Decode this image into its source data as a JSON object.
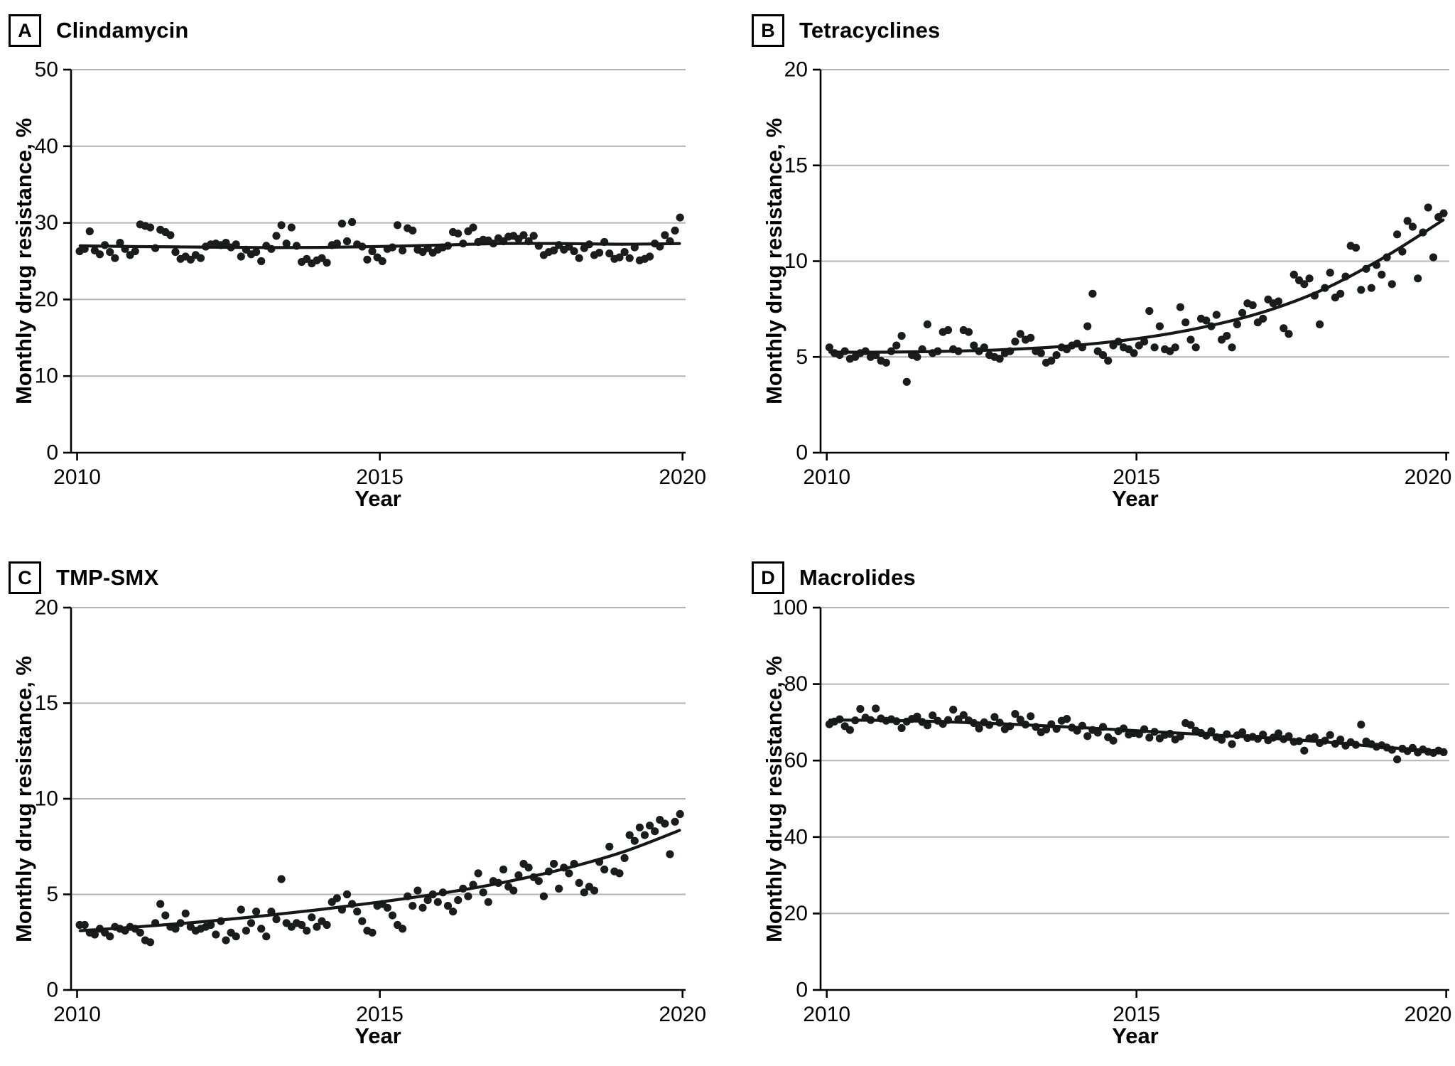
{
  "style": {
    "background": "#ffffff",
    "point_color": "#1a1d1c",
    "trend_color": "#14181a",
    "grid_color": "#b4b4b4",
    "axis_color": "#000000",
    "text_color": "#000000"
  },
  "chart_data": [
    {
      "panel": "A",
      "title": "Clindamycin",
      "type": "scatter",
      "xlabel": "Year",
      "ylabel": "Monthly drug resistance, %",
      "x_start_year": 2010,
      "x_interval": "monthly",
      "xlim": [
        2009.9,
        2020.05
      ],
      "ylim": [
        0,
        50
      ],
      "xticks": [
        2010,
        2015,
        2020
      ],
      "yticks": [
        0,
        10,
        20,
        30,
        40,
        50
      ],
      "grid": "horizontal",
      "legend": "none",
      "values": [
        26.3,
        26.6,
        28.9,
        26.4,
        25.9,
        27.1,
        26.2,
        25.4,
        27.4,
        26.6,
        25.8,
        26.3,
        29.8,
        29.6,
        29.4,
        26.7,
        29.1,
        28.8,
        28.4,
        26.2,
        25.3,
        25.6,
        25.2,
        25.8,
        25.4,
        26.9,
        27.2,
        27.3,
        27.1,
        27.4,
        26.8,
        27.2,
        25.6,
        26.5,
        25.9,
        26.2,
        25.0,
        27.0,
        26.6,
        28.3,
        29.7,
        27.3,
        29.4,
        27.0,
        24.9,
        25.3,
        24.7,
        25.1,
        25.4,
        24.8,
        27.1,
        27.3,
        29.9,
        27.6,
        30.1,
        27.2,
        26.9,
        25.2,
        26.3,
        25.5,
        25.0,
        26.6,
        26.8,
        29.7,
        26.4,
        29.3,
        29.0,
        26.5,
        26.2,
        26.7,
        26.1,
        26.5,
        26.8,
        27.0,
        28.8,
        28.6,
        27.3,
        28.9,
        29.4,
        27.5,
        27.8,
        27.7,
        27.3,
        28.0,
        27.6,
        28.2,
        28.3,
        27.9,
        28.4,
        27.6,
        28.3,
        27.0,
        25.8,
        26.2,
        26.4,
        27.1,
        26.5,
        26.9,
        26.3,
        25.4,
        26.7,
        27.2,
        25.8,
        26.1,
        27.5,
        26.0,
        25.3,
        25.5,
        26.2,
        25.4,
        26.8,
        25.1,
        25.3,
        25.6,
        27.3,
        26.9,
        28.4,
        27.6,
        29.0,
        30.7
      ],
      "trend": [
        [
          2010.05,
          27.0
        ],
        [
          2011,
          26.9
        ],
        [
          2012,
          26.85
        ],
        [
          2013,
          26.78
        ],
        [
          2014,
          26.8
        ],
        [
          2015,
          26.92
        ],
        [
          2016,
          27.1
        ],
        [
          2017,
          27.3
        ],
        [
          2018,
          27.3
        ],
        [
          2019,
          27.22
        ],
        [
          2019.95,
          27.3
        ]
      ]
    },
    {
      "panel": "B",
      "title": "Tetracyclines",
      "type": "scatter",
      "xlabel": "Year",
      "ylabel": "Monthly drug resistance, %",
      "x_start_year": 2010,
      "x_interval": "monthly",
      "xlim": [
        2009.9,
        2020.05
      ],
      "ylim": [
        0,
        20
      ],
      "xticks": [
        2010,
        2015,
        2020
      ],
      "yticks": [
        0,
        5,
        10,
        15,
        20
      ],
      "grid": "horizontal",
      "legend": "none",
      "values": [
        5.5,
        5.2,
        5.1,
        5.3,
        4.9,
        5.0,
        5.2,
        5.3,
        5.0,
        5.1,
        4.8,
        4.7,
        5.3,
        5.6,
        6.1,
        3.7,
        5.1,
        5.0,
        5.4,
        6.7,
        5.2,
        5.3,
        6.3,
        6.4,
        5.4,
        5.3,
        6.4,
        6.3,
        5.6,
        5.3,
        5.5,
        5.1,
        5.0,
        4.9,
        5.2,
        5.3,
        5.8,
        6.2,
        5.9,
        6.0,
        5.3,
        5.2,
        4.7,
        4.8,
        5.1,
        5.5,
        5.4,
        5.6,
        5.7,
        5.5,
        6.6,
        8.3,
        5.3,
        5.1,
        4.8,
        5.6,
        5.8,
        5.5,
        5.4,
        5.2,
        5.6,
        5.8,
        7.4,
        5.5,
        6.6,
        5.4,
        5.3,
        5.5,
        7.6,
        6.8,
        5.9,
        5.5,
        7.0,
        6.9,
        6.6,
        7.2,
        5.9,
        6.1,
        5.5,
        6.7,
        7.3,
        7.8,
        7.7,
        6.8,
        7.0,
        8.0,
        7.8,
        7.9,
        6.5,
        6.2,
        9.3,
        9.0,
        8.8,
        9.1,
        8.2,
        6.7,
        8.6,
        9.4,
        8.1,
        8.3,
        9.2,
        10.8,
        10.7,
        8.5,
        9.6,
        8.6,
        9.8,
        9.3,
        10.2,
        8.8,
        11.4,
        10.5,
        12.1,
        11.8,
        9.1,
        11.5,
        12.8,
        10.2,
        12.3,
        12.5
      ],
      "trend": [
        [
          2010.05,
          5.25
        ],
        [
          2011,
          5.25
        ],
        [
          2012,
          5.3
        ],
        [
          2013,
          5.4
        ],
        [
          2014,
          5.6
        ],
        [
          2015,
          5.95
        ],
        [
          2016,
          6.5
        ],
        [
          2017,
          7.3
        ],
        [
          2018,
          8.5
        ],
        [
          2019,
          10.2
        ],
        [
          2019.95,
          12.15
        ]
      ]
    },
    {
      "panel": "C",
      "title": "TMP-SMX",
      "type": "scatter",
      "xlabel": "Year",
      "ylabel": "Monthly drug resistance, %",
      "x_start_year": 2010,
      "x_interval": "monthly",
      "xlim": [
        2009.9,
        2020.05
      ],
      "ylim": [
        0,
        20
      ],
      "xticks": [
        2010,
        2015,
        2020
      ],
      "yticks": [
        0,
        5,
        10,
        15,
        20
      ],
      "grid": "horizontal",
      "legend": "none",
      "values": [
        3.4,
        3.4,
        3.0,
        2.9,
        3.2,
        3.0,
        2.8,
        3.3,
        3.2,
        3.1,
        3.3,
        3.2,
        3.0,
        2.6,
        2.5,
        3.5,
        4.5,
        3.9,
        3.3,
        3.2,
        3.5,
        4.0,
        3.3,
        3.1,
        3.2,
        3.3,
        3.4,
        2.9,
        3.6,
        2.6,
        3.0,
        2.8,
        4.2,
        3.1,
        3.5,
        4.1,
        3.2,
        2.8,
        4.1,
        3.7,
        5.8,
        3.5,
        3.3,
        3.5,
        3.4,
        3.1,
        3.8,
        3.3,
        3.6,
        3.4,
        4.6,
        4.8,
        4.2,
        5.0,
        4.5,
        4.1,
        3.6,
        3.1,
        3.0,
        4.4,
        4.5,
        4.3,
        3.9,
        3.4,
        3.2,
        4.9,
        4.4,
        5.2,
        4.3,
        4.7,
        5.0,
        4.6,
        5.1,
        4.4,
        4.1,
        4.7,
        5.3,
        4.9,
        5.5,
        6.1,
        5.1,
        4.6,
        5.7,
        5.6,
        6.3,
        5.4,
        5.2,
        6.0,
        6.6,
        6.4,
        5.9,
        5.7,
        4.9,
        6.2,
        6.6,
        5.3,
        6.4,
        6.1,
        6.6,
        5.6,
        5.1,
        5.4,
        5.2,
        6.7,
        6.3,
        7.5,
        6.2,
        6.1,
        6.9,
        8.1,
        7.8,
        8.5,
        8.1,
        8.6,
        8.3,
        8.9,
        8.7,
        7.1,
        8.8,
        9.2
      ],
      "trend": [
        [
          2010.05,
          3.1
        ],
        [
          2011,
          3.3
        ],
        [
          2012,
          3.55
        ],
        [
          2013,
          3.85
        ],
        [
          2014,
          4.2
        ],
        [
          2015,
          4.6
        ],
        [
          2016,
          5.05
        ],
        [
          2017,
          5.6
        ],
        [
          2018,
          6.3
        ],
        [
          2019,
          7.2
        ],
        [
          2019.95,
          8.35
        ]
      ]
    },
    {
      "panel": "D",
      "title": "Macrolides",
      "type": "scatter",
      "xlabel": "Year",
      "ylabel": "Monthly drug resistance, %",
      "x_start_year": 2010,
      "x_interval": "monthly",
      "xlim": [
        2009.9,
        2020.05
      ],
      "ylim": [
        0,
        100
      ],
      "xticks": [
        2010,
        2015,
        2020
      ],
      "yticks": [
        0,
        20,
        40,
        60,
        80,
        100
      ],
      "grid": "horizontal",
      "legend": "none",
      "values": [
        69.5,
        70.2,
        70.8,
        69.0,
        68.0,
        70.5,
        73.5,
        71.2,
        70.6,
        73.6,
        71.0,
        70.4,
        70.8,
        70.3,
        68.5,
        70.2,
        70.9,
        71.5,
        70.1,
        69.2,
        71.8,
        70.4,
        69.6,
        70.6,
        73.3,
        70.8,
        71.9,
        70.5,
        69.8,
        68.4,
        70.0,
        69.3,
        71.4,
        69.9,
        68.2,
        69.0,
        72.2,
        70.7,
        69.4,
        71.6,
        68.8,
        67.4,
        68.1,
        69.5,
        68.3,
        70.4,
        70.9,
        68.6,
        67.8,
        69.1,
        66.4,
        68.0,
        67.3,
        68.8,
        66.1,
        65.2,
        67.7,
        68.4,
        66.8,
        67.2,
        66.9,
        68.2,
        66.0,
        67.5,
        65.8,
        66.7,
        67.0,
        65.5,
        66.3,
        69.8,
        69.3,
        67.8,
        67.2,
        66.5,
        67.7,
        66.1,
        65.4,
        66.9,
        64.3,
        66.6,
        67.4,
        65.9,
        66.2,
        65.7,
        66.8,
        65.3,
        66.0,
        67.1,
        65.6,
        66.4,
        64.9,
        65.1,
        62.6,
        65.8,
        66.1,
        64.6,
        65.2,
        66.7,
        64.4,
        65.5,
        63.9,
        64.8,
        64.1,
        69.4,
        65.0,
        64.3,
        63.6,
        64.0,
        63.4,
        62.8,
        60.3,
        63.1,
        62.5,
        63.3,
        62.1,
        62.9,
        62.3,
        62.0,
        62.6,
        62.2
      ],
      "trend": [
        [
          2010.05,
          70.6
        ],
        [
          2011,
          70.5
        ],
        [
          2012,
          70.1
        ],
        [
          2013,
          69.5
        ],
        [
          2014,
          68.7
        ],
        [
          2015,
          67.8
        ],
        [
          2016,
          66.9
        ],
        [
          2017,
          66.0
        ],
        [
          2018,
          64.9
        ],
        [
          2019,
          63.5
        ],
        [
          2019.95,
          62.3
        ]
      ]
    }
  ]
}
